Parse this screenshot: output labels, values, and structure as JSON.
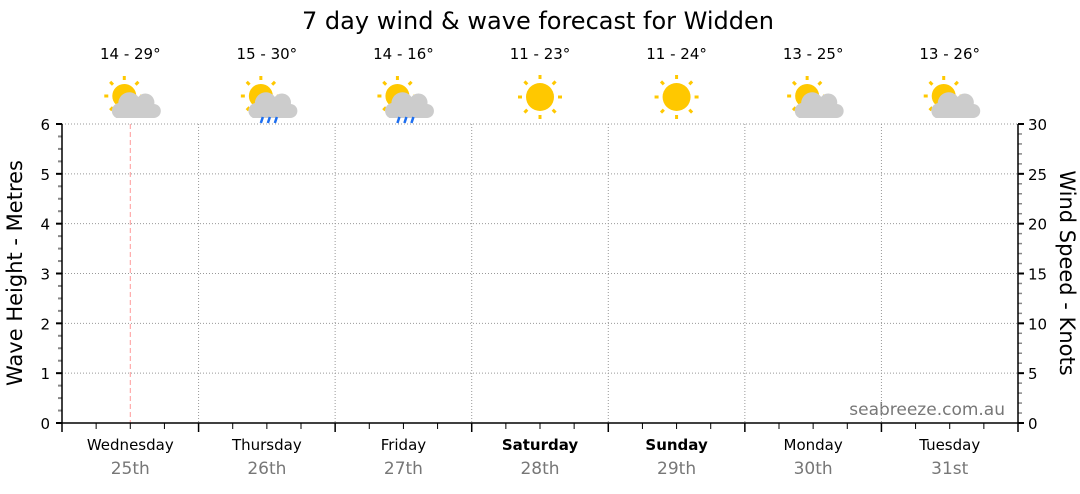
{
  "chart_data": {
    "type": "line",
    "title": "7 day wind & wave forecast for Widden",
    "ylabel_left": "Wave Height - Metres",
    "ylabel_right": "Wind Speed - Knots",
    "ylim_left": [
      0,
      6
    ],
    "ylim_right": [
      0,
      30
    ],
    "yticks_left": [
      "0",
      "1",
      "2",
      "3",
      "4",
      "5",
      "6"
    ],
    "yticks_right": [
      "0",
      "5",
      "10",
      "15",
      "20",
      "25",
      "30"
    ],
    "grid": true,
    "watermark": "seabreeze.com.au",
    "days": [
      {
        "name": "Wednesday",
        "date": "25th",
        "temp": "14 - 29°",
        "icon": "partly-cloudy",
        "bold": false
      },
      {
        "name": "Thursday",
        "date": "26th",
        "temp": "15 - 30°",
        "icon": "sun-cloud-rain",
        "bold": false
      },
      {
        "name": "Friday",
        "date": "27th",
        "temp": "14 - 16°",
        "icon": "sun-cloud-rain",
        "bold": false
      },
      {
        "name": "Saturday",
        "date": "28th",
        "temp": "11 - 23°",
        "icon": "sunny",
        "bold": true
      },
      {
        "name": "Sunday",
        "date": "29th",
        "temp": "11 - 24°",
        "icon": "sunny",
        "bold": true
      },
      {
        "name": "Monday",
        "date": "30th",
        "temp": "13 - 25°",
        "icon": "partly-cloudy",
        "bold": false
      },
      {
        "name": "Tuesday",
        "date": "31st",
        "temp": "13 - 26°",
        "icon": "partly-cloudy",
        "bold": false
      }
    ],
    "now_marker_day_fraction": 0.5,
    "series": [],
    "colors": {
      "sun": "#ffc800",
      "cloud": "#cccccc",
      "rain": "#1e6ff0",
      "now": "#ff9999",
      "grid": "#999999",
      "date": "#777777"
    }
  }
}
